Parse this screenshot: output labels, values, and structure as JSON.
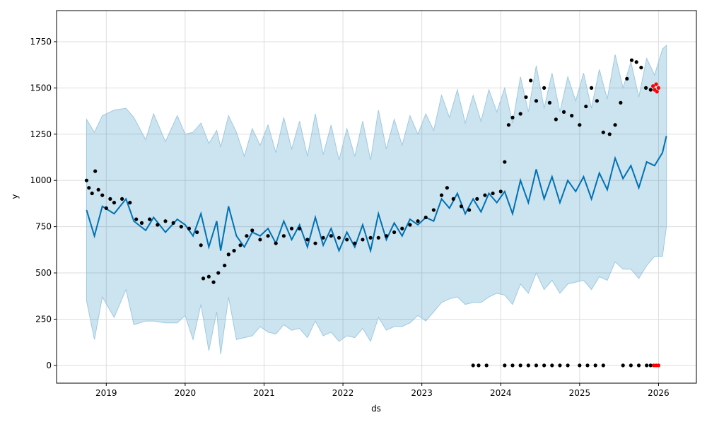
{
  "chart_data": {
    "type": "line",
    "title": "",
    "xlabel": "ds",
    "ylabel": "y",
    "xlim": [
      2018.37,
      2026.48
    ],
    "ylim": [
      -96,
      1918
    ],
    "grid": true,
    "xticks": [
      {
        "v": 2019,
        "label": "2019"
      },
      {
        "v": 2020,
        "label": "2020"
      },
      {
        "v": 2021,
        "label": "2021"
      },
      {
        "v": 2022,
        "label": "2022"
      },
      {
        "v": 2023,
        "label": "2023"
      },
      {
        "v": 2024,
        "label": "2024"
      },
      {
        "v": 2025,
        "label": "2025"
      },
      {
        "v": 2026,
        "label": "2026"
      }
    ],
    "yticks": [
      {
        "v": 0,
        "label": "0"
      },
      {
        "v": 250,
        "label": "250"
      },
      {
        "v": 500,
        "label": "500"
      },
      {
        "v": 750,
        "label": "750"
      },
      {
        "v": 1000,
        "label": "1000"
      },
      {
        "v": 1250,
        "label": "1250"
      },
      {
        "v": 1500,
        "label": "1500"
      },
      {
        "v": 1750,
        "label": "1750"
      }
    ],
    "colors": {
      "forecast": "#0072B2",
      "interval": "#0072B2",
      "actual": "#000000",
      "highlight": "#ff0000"
    },
    "interval_halfwidth": 520,
    "forecast": [
      [
        2018.75,
        840
      ],
      [
        2018.85,
        700
      ],
      [
        2018.95,
        860
      ],
      [
        2019.1,
        820
      ],
      [
        2019.25,
        900
      ],
      [
        2019.35,
        780
      ],
      [
        2019.5,
        730
      ],
      [
        2019.6,
        800
      ],
      [
        2019.75,
        720
      ],
      [
        2019.9,
        790
      ],
      [
        2020.0,
        760
      ],
      [
        2020.1,
        700
      ],
      [
        2020.2,
        820
      ],
      [
        2020.3,
        640
      ],
      [
        2020.4,
        780
      ],
      [
        2020.45,
        620
      ],
      [
        2020.55,
        860
      ],
      [
        2020.65,
        700
      ],
      [
        2020.75,
        640
      ],
      [
        2020.85,
        720
      ],
      [
        2020.95,
        700
      ],
      [
        2021.05,
        740
      ],
      [
        2021.15,
        660
      ],
      [
        2021.25,
        780
      ],
      [
        2021.35,
        680
      ],
      [
        2021.45,
        760
      ],
      [
        2021.55,
        640
      ],
      [
        2021.65,
        800
      ],
      [
        2021.75,
        650
      ],
      [
        2021.85,
        740
      ],
      [
        2021.95,
        620
      ],
      [
        2022.05,
        720
      ],
      [
        2022.15,
        640
      ],
      [
        2022.25,
        760
      ],
      [
        2022.35,
        620
      ],
      [
        2022.45,
        820
      ],
      [
        2022.55,
        680
      ],
      [
        2022.65,
        770
      ],
      [
        2022.75,
        700
      ],
      [
        2022.85,
        790
      ],
      [
        2022.95,
        760
      ],
      [
        2023.05,
        800
      ],
      [
        2023.15,
        780
      ],
      [
        2023.25,
        900
      ],
      [
        2023.35,
        850
      ],
      [
        2023.45,
        930
      ],
      [
        2023.55,
        820
      ],
      [
        2023.65,
        900
      ],
      [
        2023.75,
        830
      ],
      [
        2023.85,
        930
      ],
      [
        2023.95,
        880
      ],
      [
        2024.05,
        940
      ],
      [
        2024.15,
        820
      ],
      [
        2024.25,
        1000
      ],
      [
        2024.35,
        880
      ],
      [
        2024.45,
        1060
      ],
      [
        2024.55,
        900
      ],
      [
        2024.65,
        1020
      ],
      [
        2024.75,
        880
      ],
      [
        2024.85,
        1000
      ],
      [
        2024.95,
        940
      ],
      [
        2025.05,
        1020
      ],
      [
        2025.15,
        900
      ],
      [
        2025.25,
        1040
      ],
      [
        2025.35,
        950
      ],
      [
        2025.45,
        1120
      ],
      [
        2025.55,
        1010
      ],
      [
        2025.65,
        1080
      ],
      [
        2025.75,
        960
      ],
      [
        2025.85,
        1100
      ],
      [
        2025.95,
        1080
      ],
      [
        2026.05,
        1150
      ],
      [
        2026.1,
        1240
      ]
    ],
    "actual": [
      [
        2018.75,
        1000
      ],
      [
        2018.78,
        960
      ],
      [
        2018.82,
        930
      ],
      [
        2018.86,
        1050
      ],
      [
        2018.9,
        950
      ],
      [
        2018.95,
        920
      ],
      [
        2019.0,
        850
      ],
      [
        2019.05,
        900
      ],
      [
        2019.1,
        880
      ],
      [
        2019.2,
        900
      ],
      [
        2019.3,
        880
      ],
      [
        2019.38,
        790
      ],
      [
        2019.45,
        770
      ],
      [
        2019.55,
        790
      ],
      [
        2019.65,
        760
      ],
      [
        2019.75,
        780
      ],
      [
        2019.85,
        770
      ],
      [
        2019.95,
        750
      ],
      [
        2020.05,
        740
      ],
      [
        2020.15,
        720
      ],
      [
        2020.2,
        650
      ],
      [
        2020.23,
        470
      ],
      [
        2020.3,
        480
      ],
      [
        2020.36,
        450
      ],
      [
        2020.42,
        500
      ],
      [
        2020.5,
        540
      ],
      [
        2020.55,
        600
      ],
      [
        2020.62,
        620
      ],
      [
        2020.7,
        650
      ],
      [
        2020.78,
        700
      ],
      [
        2020.85,
        730
      ],
      [
        2020.95,
        680
      ],
      [
        2021.05,
        700
      ],
      [
        2021.15,
        660
      ],
      [
        2021.25,
        700
      ],
      [
        2021.35,
        740
      ],
      [
        2021.45,
        740
      ],
      [
        2021.55,
        680
      ],
      [
        2021.65,
        660
      ],
      [
        2021.75,
        690
      ],
      [
        2021.85,
        700
      ],
      [
        2021.95,
        690
      ],
      [
        2022.05,
        680
      ],
      [
        2022.15,
        660
      ],
      [
        2022.25,
        680
      ],
      [
        2022.35,
        690
      ],
      [
        2022.45,
        690
      ],
      [
        2022.55,
        700
      ],
      [
        2022.65,
        720
      ],
      [
        2022.75,
        740
      ],
      [
        2022.85,
        760
      ],
      [
        2022.95,
        780
      ],
      [
        2023.05,
        800
      ],
      [
        2023.15,
        840
      ],
      [
        2023.25,
        920
      ],
      [
        2023.32,
        960
      ],
      [
        2023.4,
        900
      ],
      [
        2023.5,
        860
      ],
      [
        2023.6,
        840
      ],
      [
        2023.7,
        900
      ],
      [
        2023.8,
        920
      ],
      [
        2023.9,
        930
      ],
      [
        2024.0,
        940
      ],
      [
        2024.05,
        1100
      ],
      [
        2024.1,
        1300
      ],
      [
        2024.15,
        1340
      ],
      [
        2024.25,
        1360
      ],
      [
        2024.32,
        1450
      ],
      [
        2024.38,
        1540
      ],
      [
        2024.45,
        1430
      ],
      [
        2024.55,
        1500
      ],
      [
        2024.62,
        1420
      ],
      [
        2024.7,
        1330
      ],
      [
        2024.8,
        1370
      ],
      [
        2024.9,
        1350
      ],
      [
        2025.0,
        1300
      ],
      [
        2025.08,
        1400
      ],
      [
        2025.15,
        1500
      ],
      [
        2025.22,
        1430
      ],
      [
        2025.3,
        1260
      ],
      [
        2025.38,
        1250
      ],
      [
        2025.45,
        1300
      ],
      [
        2025.52,
        1420
      ],
      [
        2025.6,
        1550
      ],
      [
        2025.66,
        1650
      ],
      [
        2025.72,
        1640
      ],
      [
        2025.78,
        1610
      ],
      [
        2025.84,
        1500
      ],
      [
        2025.9,
        1490
      ],
      [
        2023.65,
        0
      ],
      [
        2023.72,
        0
      ],
      [
        2023.82,
        0
      ],
      [
        2024.05,
        0
      ],
      [
        2024.15,
        0
      ],
      [
        2024.25,
        0
      ],
      [
        2024.35,
        0
      ],
      [
        2024.45,
        0
      ],
      [
        2024.55,
        0
      ],
      [
        2024.65,
        0
      ],
      [
        2024.75,
        0
      ],
      [
        2024.85,
        0
      ],
      [
        2025.0,
        0
      ],
      [
        2025.1,
        0
      ],
      [
        2025.2,
        0
      ],
      [
        2025.3,
        0
      ],
      [
        2025.55,
        0
      ],
      [
        2025.65,
        0
      ],
      [
        2025.75,
        0
      ],
      [
        2025.85,
        0
      ],
      [
        2025.9,
        0
      ]
    ],
    "highlight": [
      [
        2025.93,
        1510
      ],
      [
        2025.95,
        1490
      ],
      [
        2025.97,
        1520
      ],
      [
        2025.98,
        1480
      ],
      [
        2026.0,
        1500
      ],
      [
        2025.94,
        0
      ],
      [
        2025.97,
        0
      ],
      [
        2026.0,
        0
      ]
    ]
  }
}
